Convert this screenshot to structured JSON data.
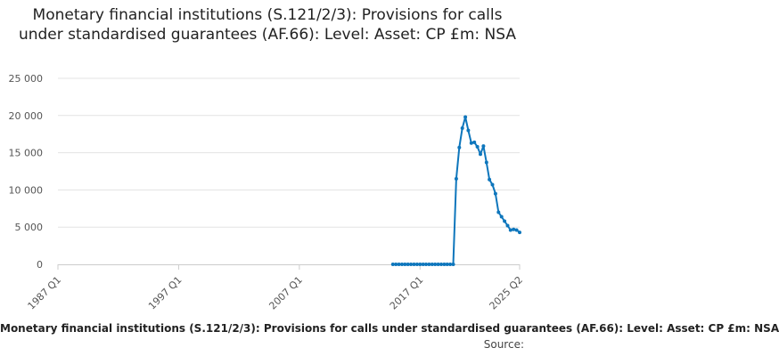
{
  "chart_data": {
    "type": "line",
    "title": "Monetary financial institutions (S.121/2/3): Provisions for calls under standardised guarantees (AF.66): Level: Asset: CP £m: NSA",
    "xlabel": "",
    "ylabel": "",
    "ylim": [
      0,
      25000
    ],
    "y_ticks": [
      0,
      5000,
      10000,
      15000,
      20000,
      25000
    ],
    "y_tick_labels": [
      "0",
      "5 000",
      "10 000",
      "15 000",
      "20 000",
      "25 000"
    ],
    "x_tick_labels": [
      "1987 Q1",
      "1997 Q1",
      "2007 Q1",
      "2017 Q1",
      "2025 Q2"
    ],
    "grid": true,
    "legend_position": "bottom",
    "series": [
      {
        "name": "Monetary financial institutions (S.121/2/3): Provisions for calls under standardised guarantees (AF.66): Level: Asset: CP £m: NSA",
        "color": "#0e76bc",
        "x": [
          "2014 Q4",
          "2015 Q1",
          "2015 Q2",
          "2015 Q3",
          "2015 Q4",
          "2016 Q1",
          "2016 Q2",
          "2016 Q3",
          "2016 Q4",
          "2017 Q1",
          "2017 Q2",
          "2017 Q3",
          "2017 Q4",
          "2018 Q1",
          "2018 Q2",
          "2018 Q3",
          "2018 Q4",
          "2019 Q1",
          "2019 Q2",
          "2019 Q3",
          "2019 Q4",
          "2020 Q1",
          "2020 Q2",
          "2020 Q3",
          "2020 Q4",
          "2021 Q1",
          "2021 Q2",
          "2021 Q3",
          "2021 Q4",
          "2022 Q1",
          "2022 Q2",
          "2022 Q3",
          "2022 Q4",
          "2023 Q1",
          "2023 Q2",
          "2023 Q3",
          "2023 Q4",
          "2024 Q1",
          "2024 Q2",
          "2024 Q3",
          "2024 Q4",
          "2025 Q1",
          "2025 Q2"
        ],
        "values": [
          0,
          0,
          0,
          0,
          0,
          0,
          0,
          0,
          0,
          0,
          0,
          0,
          0,
          0,
          0,
          0,
          0,
          0,
          0,
          0,
          0,
          11500,
          15700,
          18300,
          19800,
          18000,
          16300,
          16400,
          15800,
          14800,
          15900,
          13700,
          11400,
          10700,
          9500,
          7000,
          6400,
          5800,
          5200,
          4600,
          4700,
          4600,
          4300
        ]
      }
    ]
  },
  "legend": {
    "text": "Monetary financial institutions (S.121/2/3): Provisions for calls under standardised guarantees (AF.66): Level: Asset: CP £m: NSA"
  },
  "source": {
    "label": "Source:"
  }
}
